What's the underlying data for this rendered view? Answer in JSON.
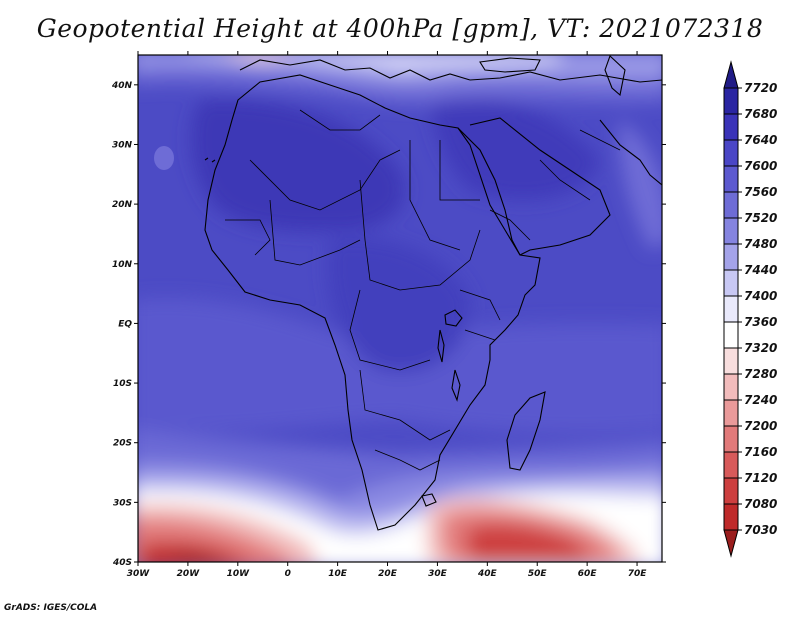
{
  "title": "Geopotential Height at 400hPa [gpm], VT: 2021072318",
  "credit": "GrADS: IGES/COLA",
  "lat_labels": [
    "40N",
    "30N",
    "20N",
    "10N",
    "EQ",
    "10S",
    "20S",
    "30S",
    "40S"
  ],
  "lon_labels": [
    "30W",
    "20W",
    "10W",
    "0",
    "10E",
    "20E",
    "30E",
    "40E",
    "50E",
    "60E",
    "70E"
  ],
  "colorbar": {
    "levels": [
      "7720",
      "7680",
      "7640",
      "7600",
      "7560",
      "7520",
      "7480",
      "7440",
      "7400",
      "7360",
      "7320",
      "7280",
      "7240",
      "7200",
      "7160",
      "7120",
      "7080",
      "7030"
    ],
    "colors": [
      "#201b86",
      "#2a25a2",
      "#3a33b8",
      "#4a46c6",
      "#5c59cf",
      "#6e6cd6",
      "#8584e0",
      "#a4a3e9",
      "#c8c8f4",
      "#e9e9fb",
      "#ffffff",
      "#f8dede",
      "#f2bcbc",
      "#ea9a9a",
      "#e27a7a",
      "#d85a5a",
      "#cd3f3f",
      "#bf2a2a",
      "#9a1d1d"
    ]
  },
  "map": {
    "background": "#4d4dc6",
    "extent": {
      "lon": [
        -30,
        75
      ],
      "lat": [
        -40,
        45
      ]
    }
  }
}
